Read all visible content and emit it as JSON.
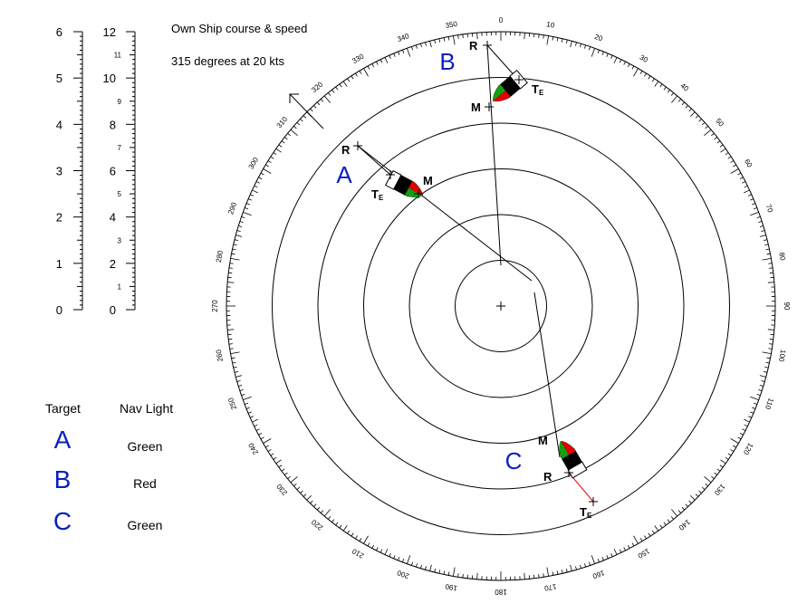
{
  "own_ship": {
    "title": "Own Ship course & speed",
    "value": "315 degrees at 20 kts",
    "course_deg": 315
  },
  "scales": {
    "left": {
      "ticks": [
        "0",
        "1",
        "2",
        "3",
        "4",
        "5",
        "6"
      ],
      "max": 6
    },
    "right": {
      "major": [
        "0",
        "2",
        "4",
        "6",
        "8",
        "10",
        "12"
      ],
      "minor": [
        "1",
        "3",
        "5",
        "7",
        "9",
        "11"
      ],
      "max": 12
    }
  },
  "compass": {
    "labels": [
      "0",
      "10",
      "20",
      "30",
      "40",
      "50",
      "60",
      "70",
      "80",
      "90",
      "100",
      "110",
      "120",
      "130",
      "140",
      "150",
      "160",
      "170",
      "180",
      "190",
      "200",
      "210",
      "220",
      "230",
      "240",
      "250",
      "260",
      "270",
      "280",
      "290",
      "300",
      "310",
      "320",
      "330",
      "340",
      "350"
    ],
    "range_rings": 5
  },
  "targets": [
    {
      "id": "A",
      "letter": "A",
      "point_labels": {
        "r": "R",
        "m": "M",
        "te": "T",
        "te_sub": "E"
      },
      "course_deg": 118,
      "lights_visible": [
        "red",
        "green"
      ]
    },
    {
      "id": "B",
      "letter": "B",
      "point_labels": {
        "r": "R",
        "m": "M",
        "te": "T",
        "te_sub": "E"
      },
      "course_deg": 243,
      "lights_visible": [
        "red",
        "green"
      ]
    },
    {
      "id": "C",
      "letter": "C",
      "point_labels": {
        "r": "R",
        "m": "M",
        "te": "T",
        "te_sub": "E"
      },
      "course_deg": 330,
      "lights_visible": [
        "red",
        "green"
      ]
    }
  ],
  "table": {
    "header_target": "Target",
    "header_light": "Nav Light",
    "rows": [
      {
        "target": "A",
        "light": "Green"
      },
      {
        "target": "B",
        "light": "Red"
      },
      {
        "target": "C",
        "light": "Green"
      }
    ]
  },
  "colors": {
    "target_letter": "#0a1fc0",
    "port_light": "#e00000",
    "starboard_light": "#10a010",
    "hull": "#000000",
    "vector_red": "#ff0000"
  }
}
